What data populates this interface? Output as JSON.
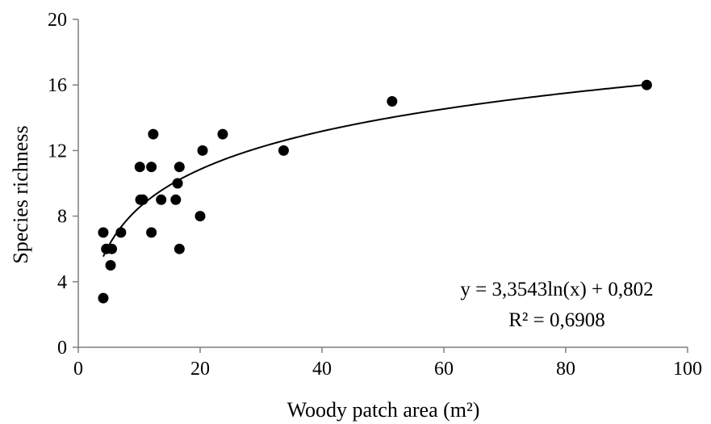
{
  "chart_data": {
    "type": "scatter",
    "xlabel": "Woody patch area (m²)",
    "ylabel": "Species richness",
    "xlim": [
      0,
      100
    ],
    "ylim": [
      0,
      20
    ],
    "x_ticks": [
      0,
      20,
      40,
      60,
      80,
      100
    ],
    "y_ticks": [
      0,
      4,
      8,
      12,
      16,
      20
    ],
    "grid": false,
    "legend": "none",
    "marker_color": "#000000",
    "series": [
      {
        "points": [
          {
            "x": 4.1,
            "y": 7
          },
          {
            "x": 4.1,
            "y": 3
          },
          {
            "x": 4.6,
            "y": 6
          },
          {
            "x": 5.3,
            "y": 5
          },
          {
            "x": 5.5,
            "y": 6
          },
          {
            "x": 7.0,
            "y": 7
          },
          {
            "x": 10.1,
            "y": 11
          },
          {
            "x": 10.2,
            "y": 9
          },
          {
            "x": 10.6,
            "y": 9
          },
          {
            "x": 12.0,
            "y": 11
          },
          {
            "x": 12.0,
            "y": 7
          },
          {
            "x": 12.3,
            "y": 13
          },
          {
            "x": 13.6,
            "y": 9
          },
          {
            "x": 16.0,
            "y": 9
          },
          {
            "x": 16.3,
            "y": 10
          },
          {
            "x": 16.6,
            "y": 11
          },
          {
            "x": 16.6,
            "y": 6
          },
          {
            "x": 20.0,
            "y": 8
          },
          {
            "x": 20.4,
            "y": 12
          },
          {
            "x": 23.7,
            "y": 13
          },
          {
            "x": 33.7,
            "y": 12
          },
          {
            "x": 51.5,
            "y": 15
          },
          {
            "x": 93.3,
            "y": 16
          }
        ]
      }
    ],
    "trendline": {
      "type": "logarithmic",
      "a": 3.3543,
      "b": 0.802,
      "x_range": [
        4.1,
        93.3
      ]
    },
    "annotations": {
      "equation": "y = 3,3543ln(x) + 0,802",
      "r_squared": "R² = 0,6908"
    }
  }
}
